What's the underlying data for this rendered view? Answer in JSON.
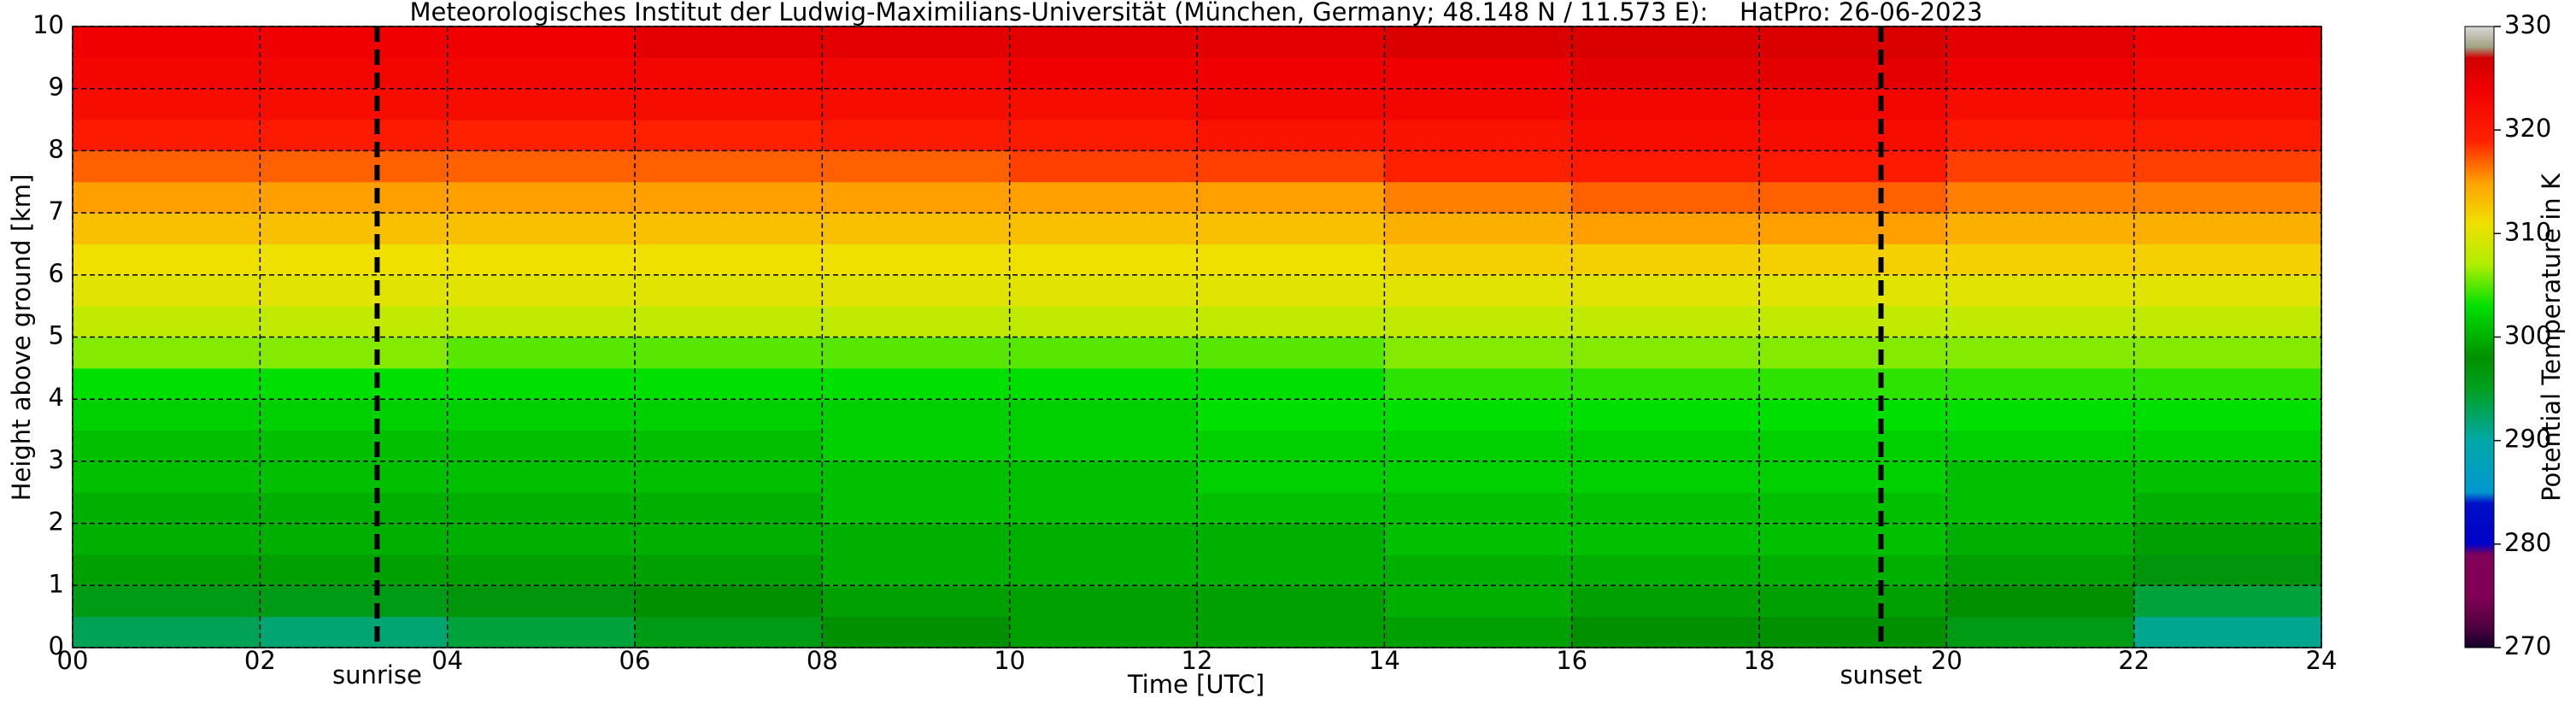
{
  "chart_data": {
    "type": "heatmap",
    "title": "Meteorologisches Institut der Ludwig-Maximilians-Universität (München, Germany; 48.148 N / 11.573 E):    HatPro: 26-06-2023",
    "x_label": "Time [UTC]",
    "y_label": "Height above ground [km]",
    "colorbar_label": "Potential Temperature in K",
    "x_bins": [
      0,
      2,
      4,
      6,
      8,
      10,
      12,
      14,
      16,
      18,
      20,
      22,
      24
    ],
    "y_bins": [
      0,
      0.5,
      1,
      1.5,
      2,
      2.5,
      3,
      3.5,
      4,
      4.5,
      5,
      5.5,
      6,
      6.5,
      7,
      7.5,
      8,
      8.5,
      9,
      9.5,
      10
    ],
    "values": [
      [
        293,
        296,
        299,
        300,
        300,
        301,
        301,
        302,
        303,
        306,
        308,
        310,
        311,
        313,
        315,
        317,
        320,
        322,
        323,
        324
      ],
      [
        292,
        296,
        299,
        300,
        300,
        301,
        301,
        302,
        303,
        306,
        308,
        310,
        311,
        313,
        315,
        317,
        320,
        322,
        323,
        324
      ],
      [
        294,
        297,
        299,
        300,
        300,
        301,
        301,
        302,
        303,
        305,
        308,
        310,
        311,
        313,
        315,
        317,
        319,
        322,
        323,
        324
      ],
      [
        296,
        298,
        299,
        300,
        300,
        301,
        301,
        302,
        303,
        305,
        308,
        310,
        311,
        313,
        315,
        317,
        319,
        322,
        323,
        325
      ],
      [
        298,
        299,
        300,
        300,
        301,
        301,
        302,
        302,
        303,
        305,
        308,
        310,
        311,
        313,
        315,
        317,
        320,
        322,
        323,
        325
      ],
      [
        299,
        299,
        300,
        300,
        301,
        301,
        302,
        302,
        303,
        305,
        308,
        310,
        311,
        313,
        315,
        318,
        320,
        322,
        324,
        325
      ],
      [
        299,
        299,
        300,
        300,
        301,
        302,
        302,
        303,
        303,
        305,
        308,
        310,
        311,
        313,
        315,
        318,
        321,
        323,
        324,
        325
      ],
      [
        299,
        300,
        300,
        301,
        301,
        302,
        302,
        303,
        304,
        306,
        308,
        310,
        312,
        314,
        316,
        319,
        321,
        323,
        324,
        326
      ],
      [
        298,
        299,
        300,
        301,
        301,
        302,
        302,
        303,
        304,
        306,
        308,
        310,
        312,
        315,
        317,
        320,
        322,
        323,
        325,
        326
      ],
      [
        298,
        299,
        300,
        301,
        301,
        302,
        302,
        303,
        304,
        306,
        308,
        310,
        312,
        315,
        317,
        320,
        322,
        323,
        325,
        326
      ],
      [
        296,
        298,
        299,
        300,
        301,
        301,
        302,
        303,
        304,
        306,
        308,
        310,
        312,
        314,
        316,
        318,
        320,
        322,
        324,
        325
      ],
      [
        291,
        294,
        297,
        299,
        300,
        301,
        302,
        303,
        304,
        306,
        308,
        310,
        312,
        314,
        316,
        318,
        320,
        322,
        323,
        324
      ]
    ],
    "xlim": [
      0,
      24
    ],
    "ylim": [
      0,
      10
    ],
    "xticks": [
      {
        "value": 0,
        "label": "00"
      },
      {
        "value": 2,
        "label": "02"
      },
      {
        "value": 4,
        "label": "04"
      },
      {
        "value": 6,
        "label": "06"
      },
      {
        "value": 8,
        "label": "08"
      },
      {
        "value": 10,
        "label": "10"
      },
      {
        "value": 12,
        "label": "12"
      },
      {
        "value": 14,
        "label": "14"
      },
      {
        "value": 16,
        "label": "16"
      },
      {
        "value": 18,
        "label": "18"
      },
      {
        "value": 20,
        "label": "20"
      },
      {
        "value": 22,
        "label": "22"
      },
      {
        "value": 24,
        "label": "24"
      }
    ],
    "yticks": [
      0,
      1,
      2,
      3,
      4,
      5,
      6,
      7,
      8,
      9,
      10
    ],
    "grid": true,
    "clim": [
      270,
      330
    ],
    "cticks": [
      270,
      280,
      290,
      300,
      310,
      320,
      330
    ],
    "colorscale": [
      {
        "value": 270,
        "color": "#10002a"
      },
      {
        "value": 272,
        "color": "#500040"
      },
      {
        "value": 275,
        "color": "#800058"
      },
      {
        "value": 279,
        "color": "#80005a"
      },
      {
        "value": 280,
        "color": "#0000c8"
      },
      {
        "value": 284,
        "color": "#0010c8"
      },
      {
        "value": 285,
        "color": "#0098d0"
      },
      {
        "value": 290,
        "color": "#00a8a8"
      },
      {
        "value": 295,
        "color": "#00a020"
      },
      {
        "value": 298,
        "color": "#009000"
      },
      {
        "value": 303,
        "color": "#00e000"
      },
      {
        "value": 307,
        "color": "#b0ee00"
      },
      {
        "value": 311,
        "color": "#f0e000"
      },
      {
        "value": 315,
        "color": "#ffa000"
      },
      {
        "value": 319,
        "color": "#ff2000"
      },
      {
        "value": 324,
        "color": "#f00000"
      },
      {
        "value": 327,
        "color": "#d00000"
      },
      {
        "value": 328,
        "color": "#a0a080"
      },
      {
        "value": 330,
        "color": "#d8d8d8"
      }
    ],
    "annotations": [
      {
        "x": 3.25,
        "label": "sunrise"
      },
      {
        "x": 19.3,
        "label": "sunset"
      }
    ]
  }
}
